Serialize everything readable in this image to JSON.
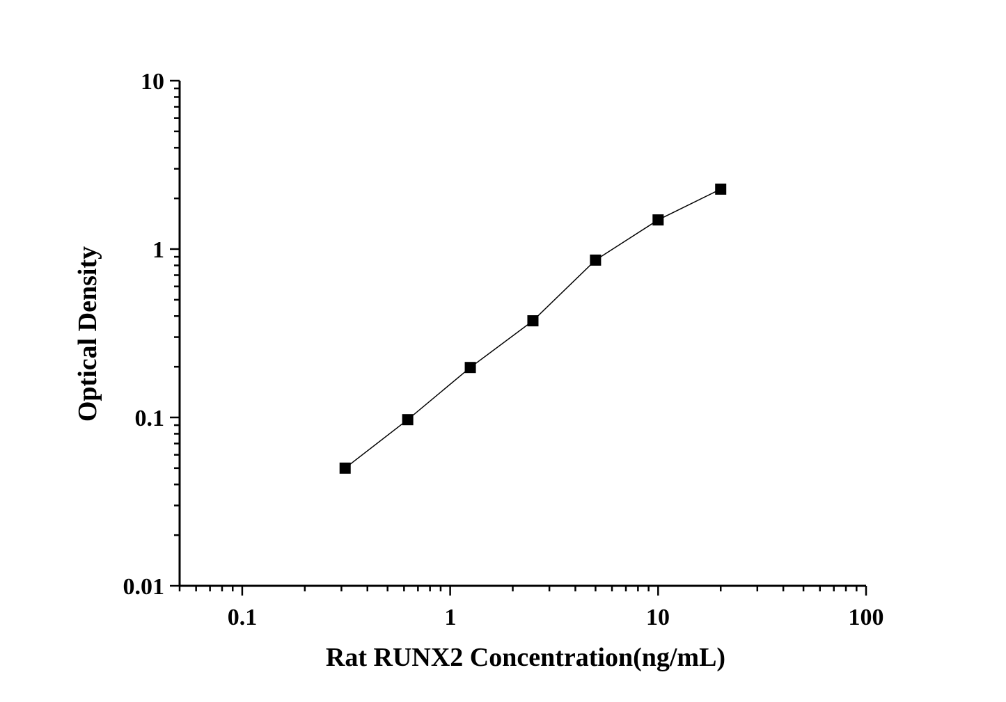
{
  "chart_data": {
    "type": "line",
    "title": "",
    "xlabel": "Rat RUNX2 Concentration(ng/mL)",
    "ylabel": "Optical Density",
    "x_scale": "log",
    "y_scale": "log",
    "xlim": [
      0.05,
      100
    ],
    "ylim": [
      0.01,
      10
    ],
    "x_ticks": [
      "0.1",
      "1",
      "10",
      "100"
    ],
    "y_ticks": [
      "0.01",
      "0.1",
      "1",
      "10"
    ],
    "grid": false,
    "marker": "square",
    "color": "#000000",
    "series": [
      {
        "x": [
          0.3125,
          0.625,
          1.25,
          2.5,
          5,
          10,
          20
        ],
        "y": [
          0.05,
          0.097,
          0.198,
          0.375,
          0.86,
          1.49,
          2.27
        ]
      }
    ]
  }
}
